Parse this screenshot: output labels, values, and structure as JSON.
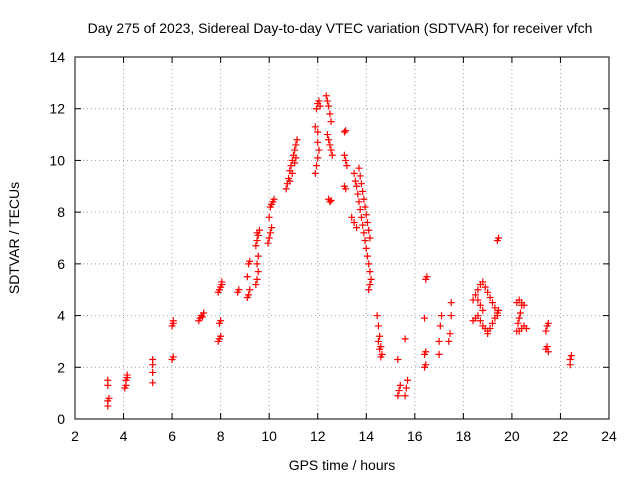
{
  "chart_data": {
    "type": "scatter",
    "title": "Day 275 of 2023, Sidereal Day-to-day VTEC variation (SDTVAR) for receiver vfch",
    "xlabel": "GPS time / hours",
    "ylabel": "SDTVAR / TECUs",
    "xlim": [
      2,
      24
    ],
    "ylim": [
      0,
      14
    ],
    "xticks": [
      2,
      4,
      6,
      8,
      10,
      12,
      14,
      16,
      18,
      20,
      22,
      24
    ],
    "yticks": [
      0,
      2,
      4,
      6,
      8,
      10,
      12,
      14
    ],
    "grid": true,
    "marker": "plus",
    "color": "#ff0000",
    "series": [
      {
        "name": "SDTVAR",
        "points": [
          [
            3.35,
            1.3
          ],
          [
            3.35,
            1.5
          ],
          [
            3.35,
            0.5
          ],
          [
            3.35,
            0.7
          ],
          [
            3.4,
            0.8
          ],
          [
            4.1,
            1.3
          ],
          [
            4.1,
            1.5
          ],
          [
            4.15,
            1.6
          ],
          [
            4.15,
            1.7
          ],
          [
            4.05,
            1.2
          ],
          [
            5.2,
            1.4
          ],
          [
            5.2,
            1.8
          ],
          [
            5.2,
            2.1
          ],
          [
            5.2,
            2.3
          ],
          [
            6.0,
            2.3
          ],
          [
            6.05,
            2.4
          ],
          [
            6.0,
            3.6
          ],
          [
            6.05,
            3.7
          ],
          [
            6.05,
            3.8
          ],
          [
            7.1,
            3.8
          ],
          [
            7.15,
            3.9
          ],
          [
            7.2,
            4.0
          ],
          [
            7.3,
            4.1
          ],
          [
            7.25,
            3.95
          ],
          [
            7.9,
            3.0
          ],
          [
            7.95,
            3.1
          ],
          [
            8.0,
            3.2
          ],
          [
            7.95,
            3.7
          ],
          [
            8.0,
            3.8
          ],
          [
            7.9,
            4.9
          ],
          [
            7.95,
            5.0
          ],
          [
            8.0,
            5.1
          ],
          [
            8.05,
            5.2
          ],
          [
            8.05,
            5.3
          ],
          [
            8.7,
            4.9
          ],
          [
            8.75,
            5.0
          ],
          [
            9.1,
            4.7
          ],
          [
            9.15,
            4.8
          ],
          [
            9.2,
            5.0
          ],
          [
            9.1,
            5.5
          ],
          [
            9.15,
            6.0
          ],
          [
            9.2,
            6.1
          ],
          [
            9.45,
            5.2
          ],
          [
            9.5,
            5.4
          ],
          [
            9.55,
            5.7
          ],
          [
            9.5,
            6.0
          ],
          [
            9.55,
            6.3
          ],
          [
            9.45,
            6.7
          ],
          [
            9.5,
            6.9
          ],
          [
            9.55,
            7.1
          ],
          [
            9.6,
            7.3
          ],
          [
            9.5,
            7.2
          ],
          [
            9.95,
            6.8
          ],
          [
            10.0,
            7.0
          ],
          [
            10.05,
            7.2
          ],
          [
            10.1,
            7.4
          ],
          [
            10.0,
            7.8
          ],
          [
            10.05,
            8.2
          ],
          [
            10.1,
            8.3
          ],
          [
            10.15,
            8.4
          ],
          [
            10.2,
            8.5
          ],
          [
            10.7,
            8.9
          ],
          [
            10.75,
            9.1
          ],
          [
            10.8,
            9.3
          ],
          [
            10.85,
            9.6
          ],
          [
            10.9,
            9.8
          ],
          [
            10.95,
            10.0
          ],
          [
            11.0,
            10.2
          ],
          [
            11.05,
            10.4
          ],
          [
            11.1,
            10.6
          ],
          [
            11.15,
            10.8
          ],
          [
            10.85,
            9.2
          ],
          [
            10.95,
            9.5
          ],
          [
            11.05,
            9.9
          ],
          [
            11.1,
            10.1
          ],
          [
            11.9,
            9.5
          ],
          [
            11.95,
            9.8
          ],
          [
            12.0,
            10.1
          ],
          [
            12.05,
            10.4
          ],
          [
            12.0,
            10.7
          ],
          [
            11.9,
            11.3
          ],
          [
            12.0,
            11.1
          ],
          [
            11.95,
            12.0
          ],
          [
            12.0,
            12.2
          ],
          [
            12.05,
            12.3
          ],
          [
            12.1,
            12.1
          ],
          [
            12.35,
            12.5
          ],
          [
            12.4,
            12.3
          ],
          [
            12.45,
            12.1
          ],
          [
            12.5,
            11.8
          ],
          [
            12.55,
            11.5
          ],
          [
            12.4,
            11.0
          ],
          [
            12.45,
            10.8
          ],
          [
            12.5,
            10.6
          ],
          [
            12.55,
            10.4
          ],
          [
            12.6,
            10.2
          ],
          [
            12.45,
            8.5
          ],
          [
            12.5,
            8.4
          ],
          [
            12.55,
            8.45
          ],
          [
            13.1,
            11.1
          ],
          [
            13.15,
            11.15
          ],
          [
            13.1,
            10.2
          ],
          [
            13.15,
            10.0
          ],
          [
            13.2,
            9.8
          ],
          [
            13.1,
            9.0
          ],
          [
            13.15,
            8.9
          ],
          [
            13.5,
            9.5
          ],
          [
            13.55,
            9.2
          ],
          [
            13.6,
            9.0
          ],
          [
            13.65,
            8.7
          ],
          [
            13.7,
            8.4
          ],
          [
            13.75,
            8.1
          ],
          [
            13.8,
            7.8
          ],
          [
            13.85,
            7.5
          ],
          [
            13.9,
            7.2
          ],
          [
            13.95,
            6.9
          ],
          [
            14.0,
            6.6
          ],
          [
            14.05,
            6.3
          ],
          [
            14.1,
            6.0
          ],
          [
            14.15,
            5.7
          ],
          [
            14.2,
            5.4
          ],
          [
            13.7,
            9.7
          ],
          [
            13.75,
            9.4
          ],
          [
            13.8,
            9.1
          ],
          [
            13.85,
            8.8
          ],
          [
            13.9,
            8.5
          ],
          [
            13.95,
            8.2
          ],
          [
            14.0,
            7.9
          ],
          [
            14.05,
            7.6
          ],
          [
            14.1,
            7.3
          ],
          [
            14.15,
            7.0
          ],
          [
            13.4,
            7.8
          ],
          [
            13.5,
            7.6
          ],
          [
            13.6,
            7.4
          ],
          [
            14.1,
            5.0
          ],
          [
            14.15,
            5.2
          ],
          [
            14.45,
            4.0
          ],
          [
            14.5,
            3.6
          ],
          [
            14.55,
            3.2
          ],
          [
            14.6,
            2.8
          ],
          [
            14.65,
            2.5
          ],
          [
            14.5,
            3.0
          ],
          [
            14.55,
            2.7
          ],
          [
            14.6,
            2.4
          ],
          [
            15.3,
            0.9
          ],
          [
            15.35,
            1.1
          ],
          [
            15.4,
            1.3
          ],
          [
            15.3,
            2.3
          ],
          [
            15.6,
            0.9
          ],
          [
            15.65,
            1.2
          ],
          [
            15.7,
            1.5
          ],
          [
            15.6,
            3.1
          ],
          [
            16.4,
            2.0
          ],
          [
            16.45,
            2.1
          ],
          [
            16.4,
            2.5
          ],
          [
            16.45,
            2.6
          ],
          [
            16.4,
            3.9
          ],
          [
            16.45,
            5.4
          ],
          [
            16.5,
            5.5
          ],
          [
            17.0,
            2.5
          ],
          [
            17.0,
            3.0
          ],
          [
            17.05,
            3.6
          ],
          [
            17.1,
            4.0
          ],
          [
            17.4,
            3.0
          ],
          [
            17.45,
            3.3
          ],
          [
            17.5,
            4.0
          ],
          [
            17.5,
            4.5
          ],
          [
            18.4,
            4.6
          ],
          [
            18.5,
            4.8
          ],
          [
            18.6,
            5.0
          ],
          [
            18.7,
            5.2
          ],
          [
            18.8,
            5.3
          ],
          [
            18.9,
            5.1
          ],
          [
            19.0,
            4.9
          ],
          [
            19.1,
            4.7
          ],
          [
            19.2,
            4.5
          ],
          [
            19.3,
            4.3
          ],
          [
            19.4,
            4.1
          ],
          [
            19.3,
            3.9
          ],
          [
            19.2,
            3.7
          ],
          [
            19.1,
            3.5
          ],
          [
            19.0,
            3.4
          ],
          [
            18.4,
            3.8
          ],
          [
            18.5,
            3.9
          ],
          [
            18.6,
            4.0
          ],
          [
            18.7,
            3.8
          ],
          [
            18.8,
            3.6
          ],
          [
            18.9,
            3.5
          ],
          [
            19.0,
            3.3
          ],
          [
            19.4,
            4.0
          ],
          [
            19.45,
            4.2
          ],
          [
            18.6,
            4.6
          ],
          [
            18.7,
            4.4
          ],
          [
            18.8,
            4.2
          ],
          [
            19.4,
            6.9
          ],
          [
            19.45,
            7.0
          ],
          [
            20.2,
            3.4
          ],
          [
            20.25,
            3.7
          ],
          [
            20.3,
            3.9
          ],
          [
            20.35,
            4.1
          ],
          [
            20.4,
            4.4
          ],
          [
            20.2,
            4.5
          ],
          [
            20.3,
            4.6
          ],
          [
            20.4,
            4.5
          ],
          [
            20.5,
            4.4
          ],
          [
            20.3,
            3.4
          ],
          [
            20.4,
            3.5
          ],
          [
            20.5,
            3.6
          ],
          [
            20.6,
            3.5
          ],
          [
            21.4,
            2.7
          ],
          [
            21.45,
            2.8
          ],
          [
            21.5,
            2.6
          ],
          [
            21.4,
            3.4
          ],
          [
            21.45,
            3.6
          ],
          [
            21.5,
            3.7
          ],
          [
            22.4,
            2.1
          ],
          [
            22.4,
            2.3
          ],
          [
            22.45,
            2.45
          ]
        ]
      }
    ]
  }
}
